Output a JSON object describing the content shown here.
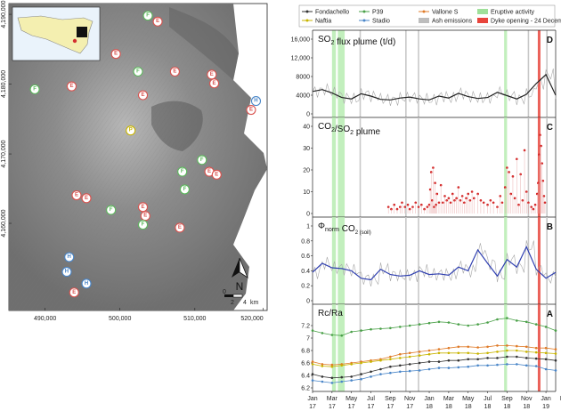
{
  "map": {
    "y_ticks": [
      {
        "label": "4,190,000",
        "frac": 0.035
      },
      {
        "label": "4,180,000",
        "frac": 0.262
      },
      {
        "label": "4,170,000",
        "frac": 0.49
      },
      {
        "label": "4,160,000",
        "frac": 0.716
      }
    ],
    "x_ticks": [
      {
        "label": "490,000",
        "frac": 0.14
      },
      {
        "label": "500,000",
        "frac": 0.43
      },
      {
        "label": "510,000",
        "frac": 0.72
      },
      {
        "label": "520,000",
        "frac": 0.985
      }
    ],
    "north_label": "N",
    "scale_labels": [
      "0",
      "2",
      "4",
      "km"
    ],
    "sites": [
      {
        "code": "F",
        "type": "F",
        "x": 0.54,
        "y": 0.02
      },
      {
        "code": "E",
        "type": "E",
        "x": 0.58,
        "y": 0.04
      },
      {
        "code": "E",
        "type": "E",
        "x": 0.41,
        "y": 0.15
      },
      {
        "code": "F",
        "type": "F",
        "x": 0.5,
        "y": 0.21
      },
      {
        "code": "E",
        "type": "E",
        "x": 0.65,
        "y": 0.21
      },
      {
        "code": "E",
        "type": "E",
        "x": 0.8,
        "y": 0.22
      },
      {
        "code": "E",
        "type": "E",
        "x": 0.81,
        "y": 0.25
      },
      {
        "code": "E",
        "type": "E",
        "x": 0.23,
        "y": 0.26
      },
      {
        "code": "F",
        "type": "F",
        "x": 0.08,
        "y": 0.27
      },
      {
        "code": "E",
        "type": "E",
        "x": 0.52,
        "y": 0.29
      },
      {
        "code": "H",
        "type": "H",
        "x": 0.98,
        "y": 0.31
      },
      {
        "code": "E",
        "type": "E",
        "x": 0.96,
        "y": 0.34
      },
      {
        "code": "P",
        "type": "P",
        "x": 0.47,
        "y": 0.41
      },
      {
        "code": "F",
        "type": "F",
        "x": 0.76,
        "y": 0.51
      },
      {
        "code": "F",
        "type": "F",
        "x": 0.68,
        "y": 0.55
      },
      {
        "code": "E",
        "type": "E",
        "x": 0.79,
        "y": 0.55
      },
      {
        "code": "E",
        "type": "E",
        "x": 0.82,
        "y": 0.56
      },
      {
        "code": "F",
        "type": "F",
        "x": 0.69,
        "y": 0.61
      },
      {
        "code": "E",
        "type": "E",
        "x": 0.25,
        "y": 0.63
      },
      {
        "code": "E",
        "type": "E",
        "x": 0.29,
        "y": 0.64
      },
      {
        "code": "E",
        "type": "E",
        "x": 0.52,
        "y": 0.67
      },
      {
        "code": "F",
        "type": "F",
        "x": 0.39,
        "y": 0.68
      },
      {
        "code": "E",
        "type": "E",
        "x": 0.53,
        "y": 0.7
      },
      {
        "code": "F",
        "type": "F",
        "x": 0.52,
        "y": 0.73
      },
      {
        "code": "E",
        "type": "E",
        "x": 0.67,
        "y": 0.74
      },
      {
        "code": "H",
        "type": "H",
        "x": 0.22,
        "y": 0.84
      },
      {
        "code": "H",
        "type": "H",
        "x": 0.21,
        "y": 0.89
      },
      {
        "code": "H",
        "type": "H",
        "x": 0.29,
        "y": 0.93
      },
      {
        "code": "E",
        "type": "E",
        "x": 0.24,
        "y": 0.96
      }
    ],
    "site_colors": {
      "E": "#d9534f",
      "F": "#5cb85c",
      "H": "#4a86c8",
      "P": "#c8b400"
    }
  },
  "legend": [
    {
      "label": "Fondachello",
      "kind": "line",
      "color": "#333333"
    },
    {
      "label": "P39",
      "kind": "line",
      "color": "#4aa048"
    },
    {
      "label": "Vallone S",
      "kind": "line",
      "color": "#e07b28"
    },
    {
      "label": "Eruptive activity",
      "kind": "box",
      "color": "#9fe09a"
    },
    {
      "label": "Naftia",
      "kind": "line",
      "color": "#c8b400"
    },
    {
      "label": "Stadio",
      "kind": "line",
      "color": "#4a86c8"
    },
    {
      "label": "Ash emissions",
      "kind": "box",
      "color": "#bdbdbd"
    },
    {
      "label": "Dyke opening - 24 December",
      "kind": "box",
      "color": "#e8453c"
    }
  ],
  "chart_data": [
    {
      "type": "line",
      "panel": "D",
      "title_main": "SO",
      "title_sub": "2",
      "title_rest": " flux plume (t/d)",
      "ylim": [
        0,
        16000
      ],
      "yticks": [
        "0",
        "4000",
        "8000",
        "12,000",
        "16,000"
      ],
      "x": [
        "Jan 17",
        "Feb 17",
        "Mar 17",
        "Apr 17",
        "May 17",
        "Jun 17",
        "Jul 17",
        "Aug 17",
        "Sep 17",
        "Oct 17",
        "Nov 17",
        "Dec 17",
        "Jan 18",
        "Feb 18",
        "Mar 18",
        "Apr 18",
        "May 18",
        "Jun 18",
        "Jul 18",
        "Aug 18",
        "Sep 18",
        "Oct 18",
        "Nov 18",
        "Dec 18",
        "Jan 19",
        "Feb 19"
      ],
      "series": [
        {
          "values": [
            4800,
            5200,
            4500,
            3500,
            3200,
            4300,
            3800,
            3100,
            3000,
            3400,
            3600,
            3200,
            3000,
            3800,
            3400,
            4400,
            3700,
            3300,
            3500,
            4600,
            3900,
            3200,
            4200,
            6500,
            8400,
            4000
          ]
        }
      ]
    },
    {
      "type": "scatter",
      "panel": "C",
      "title_main": "CO",
      "title_sub": "2",
      "title_mid": "/SO",
      "title_sub2": "2",
      "title_rest": " plume",
      "ylim": [
        0,
        40
      ],
      "yticks": [
        "0",
        "10",
        "20",
        "30",
        "40"
      ],
      "series": [
        {
          "points": [
            [
              7.8,
              3
            ],
            [
              8.1,
              2
            ],
            [
              8.4,
              4
            ],
            [
              8.7,
              2
            ],
            [
              9.0,
              3
            ],
            [
              9.2,
              5
            ],
            [
              9.5,
              3
            ],
            [
              9.8,
              4
            ],
            [
              10.0,
              2
            ],
            [
              10.3,
              3
            ],
            [
              10.6,
              5
            ],
            [
              10.9,
              3
            ],
            [
              11.2,
              4
            ],
            [
              11.5,
              2
            ],
            [
              11.8,
              3
            ],
            [
              12.0,
              4
            ],
            [
              12.1,
              11
            ],
            [
              12.2,
              19
            ],
            [
              12.3,
              6
            ],
            [
              12.4,
              21
            ],
            [
              12.5,
              3
            ],
            [
              12.6,
              14
            ],
            [
              12.7,
              4
            ],
            [
              12.8,
              9
            ],
            [
              13.0,
              5
            ],
            [
              13.2,
              13
            ],
            [
              13.4,
              5
            ],
            [
              13.6,
              8
            ],
            [
              13.8,
              6
            ],
            [
              14.0,
              7
            ],
            [
              14.2,
              5
            ],
            [
              14.4,
              9
            ],
            [
              14.6,
              6
            ],
            [
              14.8,
              7
            ],
            [
              15.0,
              12
            ],
            [
              15.2,
              6
            ],
            [
              15.4,
              8
            ],
            [
              15.6,
              5
            ],
            [
              15.8,
              7
            ],
            [
              16.0,
              9
            ],
            [
              16.2,
              6
            ],
            [
              16.4,
              10
            ],
            [
              16.6,
              7
            ],
            [
              17.0,
              9
            ],
            [
              17.3,
              6
            ],
            [
              17.6,
              5
            ],
            [
              18.0,
              4
            ],
            [
              18.3,
              6
            ],
            [
              18.6,
              5
            ],
            [
              19.0,
              3
            ],
            [
              19.3,
              8
            ],
            [
              19.5,
              5
            ],
            [
              19.8,
              12
            ],
            [
              20.0,
              21
            ],
            [
              20.2,
              19
            ],
            [
              20.4,
              9
            ],
            [
              20.6,
              17
            ],
            [
              20.8,
              7
            ],
            [
              21.0,
              25
            ],
            [
              21.2,
              4
            ],
            [
              21.4,
              18
            ],
            [
              21.6,
              6
            ],
            [
              21.8,
              29
            ],
            [
              22.0,
              10
            ],
            [
              22.2,
              5
            ],
            [
              22.5,
              3
            ],
            [
              22.7,
              2
            ],
            [
              22.9,
              4
            ],
            [
              23.1,
              9
            ],
            [
              23.2,
              14
            ],
            [
              23.3,
              27
            ],
            [
              23.4,
              36
            ],
            [
              23.5,
              31
            ],
            [
              23.6,
              23
            ],
            [
              23.7,
              15
            ],
            [
              23.8,
              8
            ],
            [
              23.9,
              5
            ]
          ]
        }
      ]
    },
    {
      "type": "line",
      "panel": "B",
      "title_main": "Φ",
      "title_sub": "norm",
      "title_rest": " CO",
      "title_sub2": "2 (soil)",
      "ylim": [
        0,
        1
      ],
      "yticks": [
        "0",
        "0.2",
        "0.4",
        "0.6",
        "0.8",
        "1"
      ],
      "series": [
        {
          "values": [
            0.38,
            0.5,
            0.44,
            0.43,
            0.4,
            0.3,
            0.28,
            0.42,
            0.35,
            0.33,
            0.34,
            0.4,
            0.35,
            0.36,
            0.34,
            0.45,
            0.4,
            0.68,
            0.5,
            0.33,
            0.55,
            0.45,
            0.72,
            0.42,
            0.3,
            0.38
          ]
        }
      ]
    },
    {
      "type": "line",
      "panel": "A",
      "title_main": "Rc/Ra",
      "ylim": [
        6.2,
        7.4
      ],
      "yticks": [
        "6.2",
        "6.4",
        "6.6",
        "6.8",
        "7",
        "7.2"
      ],
      "series": [
        {
          "name": "P39",
          "values": [
            7.12,
            7.08,
            7.05,
            7.04,
            7.1,
            7.12,
            7.14,
            7.15,
            7.16,
            7.18,
            7.2,
            7.22,
            7.24,
            7.26,
            7.25,
            7.22,
            7.2,
            7.22,
            7.25,
            7.3,
            7.32,
            7.28,
            7.26,
            7.22,
            7.18,
            7.12
          ]
        },
        {
          "name": "Vallone S",
          "values": [
            6.62,
            6.58,
            6.57,
            6.58,
            6.6,
            6.62,
            6.64,
            6.66,
            6.7,
            6.74,
            6.76,
            6.78,
            6.8,
            6.82,
            6.84,
            6.86,
            6.86,
            6.85,
            6.86,
            6.88,
            6.88,
            6.87,
            6.86,
            6.84,
            6.84,
            6.82
          ]
        },
        {
          "name": "Naftia",
          "values": [
            6.58,
            6.55,
            6.54,
            6.56,
            6.58,
            6.6,
            6.62,
            6.64,
            6.66,
            6.68,
            6.7,
            6.72,
            6.74,
            6.76,
            6.76,
            6.76,
            6.76,
            6.75,
            6.76,
            6.78,
            6.8,
            6.8,
            6.78,
            6.77,
            6.76,
            6.75
          ]
        },
        {
          "name": "Fondachello",
          "values": [
            6.42,
            6.38,
            6.36,
            6.37,
            6.38,
            6.42,
            6.46,
            6.5,
            6.54,
            6.56,
            6.58,
            6.6,
            6.62,
            6.62,
            6.64,
            6.64,
            6.66,
            6.66,
            6.68,
            6.68,
            6.7,
            6.7,
            6.68,
            6.67,
            6.66,
            6.64
          ]
        },
        {
          "name": "Stadio",
          "values": [
            6.32,
            6.3,
            6.28,
            6.3,
            6.32,
            6.34,
            6.38,
            6.42,
            6.44,
            6.46,
            6.47,
            6.48,
            6.5,
            6.52,
            6.52,
            6.53,
            6.54,
            6.56,
            6.56,
            6.57,
            6.58,
            6.58,
            6.56,
            6.55,
            6.5,
            6.48
          ]
        }
      ]
    }
  ],
  "time_axis": {
    "months": [
      "Jan",
      "Mar",
      "May",
      "Jul",
      "Sep",
      "Nov",
      "Jan",
      "Mar",
      "May",
      "Jul",
      "Sep",
      "Nov",
      "Jan",
      "Mar"
    ],
    "years": [
      "17",
      "17",
      "17",
      "17",
      "17",
      "17",
      "18",
      "18",
      "18",
      "18",
      "18",
      "18",
      "19",
      "19"
    ],
    "eruptive_periods": [
      [
        2.0,
        2.4
      ],
      [
        2.6,
        3.3
      ],
      [
        19.7,
        20.0
      ]
    ],
    "ash_events": [
      4.9,
      9.6,
      10.9,
      22.2,
      24.1
    ],
    "dyke_opening": 23.3
  }
}
